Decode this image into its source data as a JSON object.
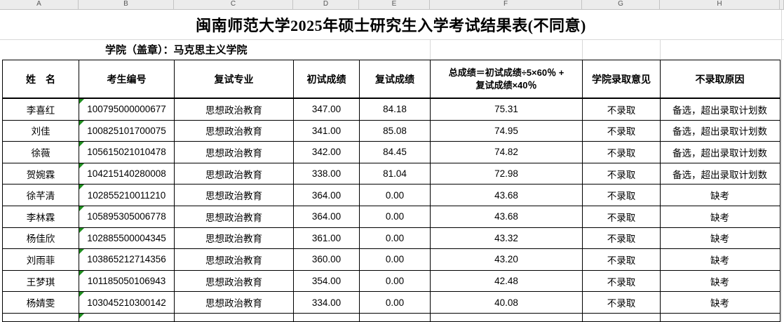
{
  "column_bar": {
    "letters": [
      "A",
      "B",
      "C",
      "D",
      "E",
      "F",
      "G",
      "H"
    ]
  },
  "title": "闽南师范大学2025年硕士研究生入学考试结果表(不同意)",
  "stamp_line": "学院（盖章）：马克思主义学院",
  "table": {
    "headers": {
      "name": "姓　名",
      "candidate_id": "考生编号",
      "major": "复试专业",
      "initial_score": "初试成绩",
      "retest_score": "复试成绩",
      "total_formula": "总成绩＝初试成绩÷5×60％ +\n复试成绩×40％",
      "college_opinion": "学院录取意见",
      "reject_reason": "不录取原因"
    },
    "rows": [
      {
        "name": "李喜红",
        "id": "100795000000677",
        "major": "思想政治教育",
        "initial": "347.00",
        "retest": "84.18",
        "total": "75.31",
        "decision": "不录取",
        "reason": "备选，超出录取计划数"
      },
      {
        "name": "刘佳",
        "id": "100825101700075",
        "major": "思想政治教育",
        "initial": "341.00",
        "retest": "85.08",
        "total": "74.95",
        "decision": "不录取",
        "reason": "备选，超出录取计划数"
      },
      {
        "name": "徐薇",
        "id": "105615021010478",
        "major": "思想政治教育",
        "initial": "342.00",
        "retest": "84.45",
        "total": "74.82",
        "decision": "不录取",
        "reason": "备选，超出录取计划数"
      },
      {
        "name": "贺婉霖",
        "id": "104215140280008",
        "major": "思想政治教育",
        "initial": "338.00",
        "retest": "81.04",
        "total": "72.98",
        "decision": "不录取",
        "reason": "备选，超出录取计划数"
      },
      {
        "name": "徐芊清",
        "id": "102855210011210",
        "major": "思想政治教育",
        "initial": "364.00",
        "retest": "0.00",
        "total": "43.68",
        "decision": "不录取",
        "reason": "缺考"
      },
      {
        "name": "李林霖",
        "id": "105895305006778",
        "major": "思想政治教育",
        "initial": "364.00",
        "retest": "0.00",
        "total": "43.68",
        "decision": "不录取",
        "reason": "缺考"
      },
      {
        "name": "杨佳欣",
        "id": "102885500004345",
        "major": "思想政治教育",
        "initial": "361.00",
        "retest": "0.00",
        "total": "43.32",
        "decision": "不录取",
        "reason": "缺考"
      },
      {
        "name": "刘雨菲",
        "id": "103865212714356",
        "major": "思想政治教育",
        "initial": "360.00",
        "retest": "0.00",
        "total": "43.20",
        "decision": "不录取",
        "reason": "缺考"
      },
      {
        "name": "王梦琪",
        "id": "101185050106943",
        "major": "思想政治教育",
        "initial": "354.00",
        "retest": "0.00",
        "total": "42.48",
        "decision": "不录取",
        "reason": "缺考"
      },
      {
        "name": "杨婧雯",
        "id": "103045210300142",
        "major": "思想政治教育",
        "initial": "334.00",
        "retest": "0.00",
        "total": "40.08",
        "decision": "不录取",
        "reason": "缺考"
      }
    ]
  },
  "colors": {
    "table_border": "#000000",
    "grid_line": "#d8d8d8",
    "column_bar_bg": "#ececec",
    "text_indicator_green": "#1f8f1f"
  }
}
